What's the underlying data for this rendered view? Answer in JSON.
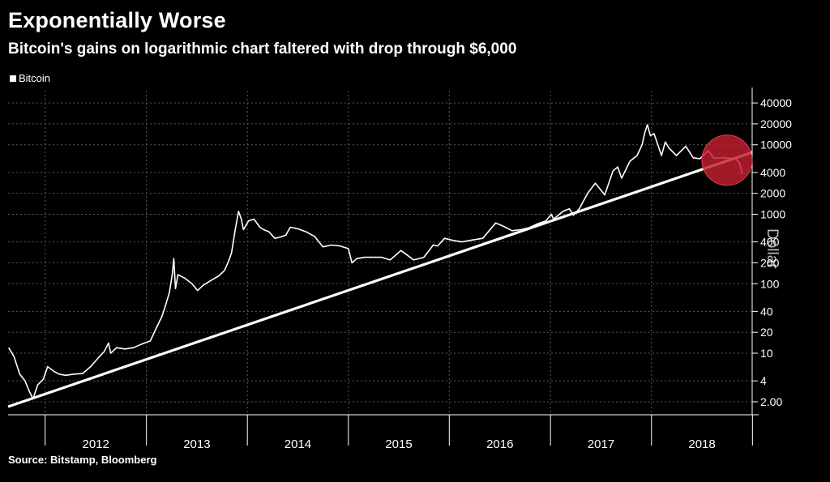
{
  "header": {
    "title": "Exponentially Worse",
    "subtitle": "Bitcoin's gains on logarithmic chart faltered with drop through $6,000"
  },
  "footer": {
    "source": "Source: Bitstamp, Bloomberg"
  },
  "chart_data": {
    "type": "line",
    "title": "Exponentially Worse",
    "subtitle": "Bitcoin's gains on logarithmic chart faltered with drop through $6,000",
    "ylabel": "Dollar",
    "yscale": "log",
    "ylim": [
      1.3,
      60000
    ],
    "xlim": [
      "2011-08-20",
      "2018-12-31"
    ],
    "grid": true,
    "legend_position": "top-left",
    "y_ticks": [
      2,
      4,
      10,
      20,
      40,
      100,
      200,
      400,
      1000,
      2000,
      4000,
      10000,
      20000,
      40000
    ],
    "y_tick_labels": [
      "2.00",
      "4",
      "10",
      "20",
      "40",
      "100",
      "200",
      "400",
      "1000",
      "2000",
      "4000",
      "10000",
      "20000",
      "40000"
    ],
    "x_boundaries": [
      "2012-01-01",
      "2013-01-01",
      "2014-01-01",
      "2015-01-01",
      "2016-01-01",
      "2017-01-01",
      "2018-01-01",
      "2019-01-01"
    ],
    "x_tick_labels": [
      "2012",
      "2013",
      "2014",
      "2015",
      "2016",
      "2017",
      "2018"
    ],
    "series": [
      {
        "name": "Bitcoin",
        "color": "#ffffff",
        "x": [
          "2011-08-22",
          "2011-09-10",
          "2011-10-01",
          "2011-10-20",
          "2011-11-05",
          "2011-11-18",
          "2011-12-05",
          "2011-12-25",
          "2012-01-10",
          "2012-02-01",
          "2012-02-20",
          "2012-03-15",
          "2012-04-15",
          "2012-05-15",
          "2012-06-15",
          "2012-07-10",
          "2012-08-01",
          "2012-08-17",
          "2012-08-25",
          "2012-09-15",
          "2012-10-15",
          "2012-11-15",
          "2012-12-15",
          "2013-01-15",
          "2013-02-10",
          "2013-02-25",
          "2013-03-10",
          "2013-03-25",
          "2013-04-05",
          "2013-04-10",
          "2013-04-16",
          "2013-04-25",
          "2013-05-20",
          "2013-06-15",
          "2013-07-05",
          "2013-07-25",
          "2013-08-20",
          "2013-09-20",
          "2013-10-10",
          "2013-10-25",
          "2013-11-05",
          "2013-11-18",
          "2013-11-30",
          "2013-12-10",
          "2013-12-18",
          "2014-01-05",
          "2014-01-25",
          "2014-02-15",
          "2014-03-01",
          "2014-03-20",
          "2014-04-10",
          "2014-05-01",
          "2014-05-20",
          "2014-06-05",
          "2014-07-01",
          "2014-08-01",
          "2014-09-01",
          "2014-10-01",
          "2014-11-01",
          "2014-12-01",
          "2015-01-01",
          "2015-01-14",
          "2015-02-01",
          "2015-03-01",
          "2015-04-01",
          "2015-05-01",
          "2015-06-01",
          "2015-07-10",
          "2015-08-01",
          "2015-08-25",
          "2015-10-01",
          "2015-11-04",
          "2015-11-20",
          "2015-12-15",
          "2016-01-15",
          "2016-02-15",
          "2016-03-15",
          "2016-05-01",
          "2016-06-17",
          "2016-07-15",
          "2016-08-15",
          "2016-09-15",
          "2016-10-15",
          "2016-11-15",
          "2016-12-15",
          "2017-01-04",
          "2017-01-12",
          "2017-02-15",
          "2017-03-10",
          "2017-03-25",
          "2017-04-15",
          "2017-05-15",
          "2017-06-12",
          "2017-07-16",
          "2017-08-15",
          "2017-09-01",
          "2017-09-15",
          "2017-10-15",
          "2017-11-10",
          "2017-11-28",
          "2017-12-08",
          "2017-12-17",
          "2017-12-28",
          "2018-01-10",
          "2018-02-06",
          "2018-02-20",
          "2018-03-05",
          "2018-04-01",
          "2018-05-05",
          "2018-06-01",
          "2018-06-25",
          "2018-07-25",
          "2018-08-15",
          "2018-09-15",
          "2018-10-15",
          "2018-11-01",
          "2018-11-15",
          "2018-11-25"
        ],
        "values": [
          12,
          9,
          5,
          4,
          2.8,
          2.2,
          3.5,
          4.2,
          6.4,
          5.5,
          5,
          4.8,
          5,
          5.1,
          6.5,
          8.5,
          10.5,
          14,
          10,
          12,
          11.5,
          12,
          13.5,
          15,
          25,
          33,
          47,
          75,
          140,
          230,
          85,
          135,
          120,
          100,
          80,
          95,
          110,
          130,
          155,
          210,
          280,
          600,
          1100,
          850,
          600,
          800,
          850,
          650,
          600,
          560,
          450,
          470,
          500,
          650,
          620,
          560,
          480,
          340,
          360,
          350,
          320,
          200,
          230,
          240,
          240,
          240,
          220,
          300,
          260,
          220,
          240,
          360,
          350,
          450,
          420,
          400,
          420,
          450,
          750,
          670,
          580,
          600,
          640,
          730,
          800,
          1000,
          850,
          1100,
          1200,
          970,
          1200,
          2000,
          2800,
          1900,
          4200,
          4800,
          3300,
          5800,
          7000,
          10000,
          15000,
          19500,
          13500,
          14500,
          7000,
          11000,
          9000,
          7000,
          9500,
          6500,
          6300,
          8200,
          6400,
          6500,
          6400,
          6300,
          5500,
          3800
        ]
      }
    ],
    "trendline": {
      "color": "#ffffff",
      "x": [
        "2011-08-20",
        "2018-12-31"
      ],
      "values": [
        1.7,
        7800
      ]
    },
    "annotation": {
      "type": "circle",
      "color": "#c2202e",
      "center_x": "2018-10-01",
      "center_y": 6000
    }
  }
}
